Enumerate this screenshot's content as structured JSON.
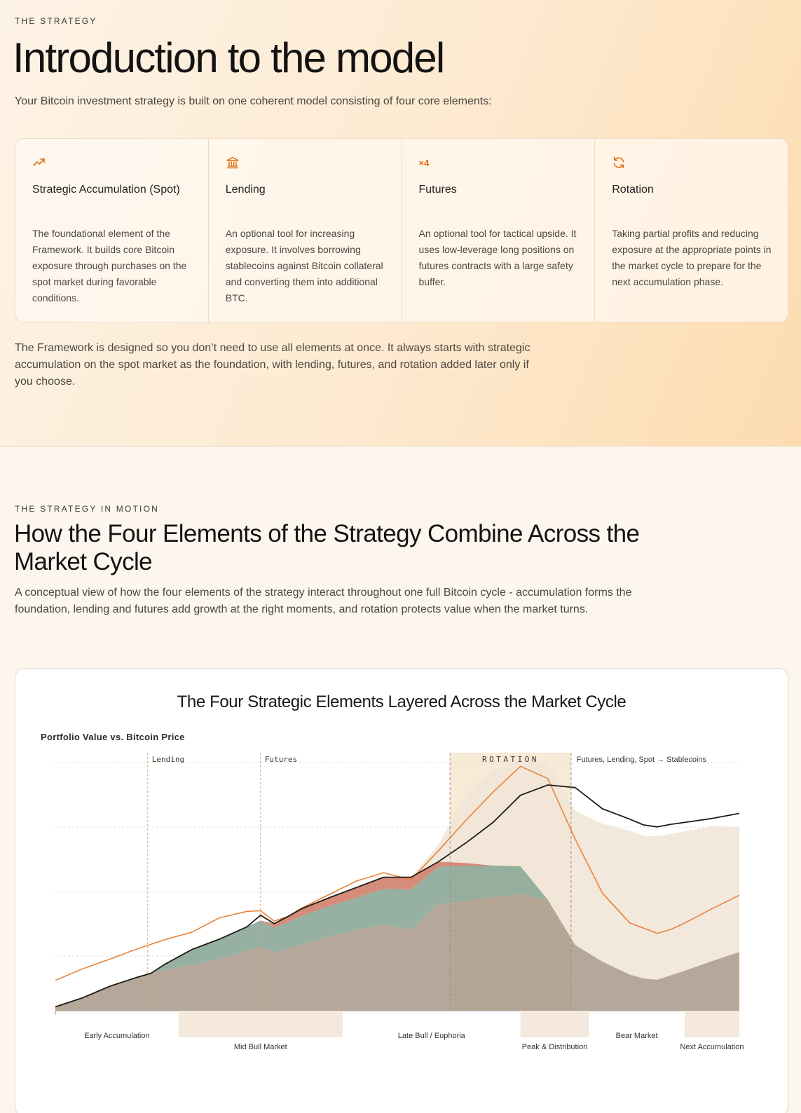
{
  "intro": {
    "eyebrow": "THE STRATEGY",
    "title": "Introduction to the model",
    "lead": "Your Bitcoin investment strategy is built on one coherent model consisting of four core elements:",
    "cards": [
      {
        "icon": "trending-up-icon",
        "title": "Strategic Accumulation (Spot)",
        "text": "The foundational element of the Framework. It builds core Bitcoin exposure through purchases on the spot market during favorable conditions."
      },
      {
        "icon": "bank-icon",
        "title": "Lending",
        "text": "An optional tool for increasing exposure. It involves borrowing stablecoins against Bitcoin collateral and converting them into additional BTC."
      },
      {
        "icon": "leverage-x4-icon",
        "icon_text": "×4",
        "title": "Futures",
        "text": "An optional tool for tactical upside. It uses low-leverage long positions on futures contracts with a large safety buffer."
      },
      {
        "icon": "refresh-icon",
        "title": "Rotation",
        "text": "Taking partial profits and reducing exposure at the appropriate points in the market cycle to prepare for the next accumulation phase."
      }
    ],
    "note": "The Framework is designed so you don’t need to use all elements at once. It always starts with strategic accumulation on the spot market as the foundation, with lending, futures, and rotation added later only if you choose."
  },
  "motion": {
    "eyebrow": "THE STRATEGY IN MOTION",
    "title": "How the Four Elements of the Strategy Combine Across the Market Cycle",
    "lead": "A conceptual view of how the four elements of the strategy interact throughout one full Bitcoin cycle - accumulation forms the foundation, lending and futures add growth at the right moments, and rotation protects value when the market turns."
  },
  "colors": {
    "accent": "#e06e14",
    "spot": "#ab9b8b",
    "lending": "#88a595",
    "futures": "#cf7d66",
    "stablecoins": "#f1e6d8",
    "rotation_band": "#f6e6cf",
    "portfolio_line": "#1f1b18",
    "btc_line": "#e8843a"
  },
  "chart_data": {
    "type": "area",
    "title": "The Four Strategic Elements Layered Across the Market Cycle",
    "subtitle": "Portfolio Value vs. Bitcoin Price",
    "x": [
      0,
      4,
      8,
      12,
      14,
      16,
      20,
      24,
      28,
      30,
      32,
      34,
      36,
      40,
      44,
      48,
      52,
      56,
      60,
      64,
      68,
      72,
      76,
      80,
      84,
      86,
      88,
      90,
      92,
      96,
      100
    ],
    "series": [
      {
        "key": "spot",
        "values": [
          0.6,
          2.0,
          3.8,
          5.2,
          5.8,
          6.3,
          7.1,
          8.0,
          9.3,
          10.0,
          9.0,
          9.6,
          10.3,
          11.5,
          12.5,
          13.4,
          12.6,
          16.5,
          17.1,
          17.6,
          18.1,
          17.2,
          10.2,
          7.6,
          5.6,
          5.0,
          4.8,
          5.5,
          6.2,
          7.7,
          9.1
        ]
      },
      {
        "key": "lending",
        "values": [
          0,
          0,
          0,
          0,
          0,
          0.9,
          2.4,
          3.1,
          3.7,
          4.0,
          3.9,
          4.1,
          4.4,
          4.7,
          5.0,
          5.5,
          6.2,
          5.8,
          5.4,
          4.9,
          4.3,
          0,
          0,
          0,
          0,
          0,
          0,
          0,
          0,
          0,
          0
        ]
      },
      {
        "key": "futures",
        "values": [
          0,
          0,
          0,
          0,
          0,
          0,
          0,
          0,
          0,
          0,
          0.6,
          0.9,
          1.1,
          1.3,
          1.6,
          1.8,
          1.9,
          0.8,
          0.4,
          0,
          0,
          0,
          0,
          0,
          0,
          0,
          0,
          0,
          0,
          0,
          0
        ]
      },
      {
        "key": "stablecoins",
        "values": [
          0,
          0,
          0,
          0,
          0,
          0,
          0,
          0,
          0,
          0,
          0,
          0,
          0,
          0,
          0,
          0,
          0,
          2.6,
          10.5,
          14.9,
          16.5,
          21.3,
          20.8,
          21.4,
          22.3,
          22.1,
          22.3,
          21.9,
          21.6,
          20.9,
          19.4
        ]
      }
    ],
    "portfolio": [
      0.6,
      2.0,
      3.8,
      5.2,
      5.8,
      7.2,
      9.5,
      11.1,
      13.0,
      14.8,
      13.5,
      14.6,
      15.8,
      17.5,
      19.1,
      20.7,
      20.7,
      23.1,
      26.0,
      29.2,
      33.4,
      35.0,
      34.6,
      31.3,
      29.7,
      28.8,
      28.5,
      28.9,
      29.2,
      29.8,
      30.6
    ],
    "bitcoin": [
      4.7,
      6.5,
      8.0,
      9.6,
      10.3,
      11.0,
      12.2,
      14.4,
      15.4,
      15.5,
      13.9,
      14.6,
      15.9,
      18.0,
      20.1,
      21.4,
      20.3,
      24.8,
      29.5,
      33.9,
      37.9,
      36.0,
      26.6,
      18.2,
      13.6,
      12.8,
      12.0,
      12.6,
      13.6,
      15.8,
      17.9
    ],
    "annotations": [
      {
        "label": "Lending",
        "x": 13.5
      },
      {
        "label": "Futures",
        "x": 30.0
      },
      {
        "label": "ROTATION",
        "x_start": 57.7,
        "x_end": 75.4
      },
      {
        "label": "Futures, Lending, Spot → Stablecoins",
        "x": 76.0
      }
    ],
    "phases": [
      {
        "label": "Early Accumulation",
        "x_start": 0,
        "x_end": 18,
        "row": 1
      },
      {
        "label": "Mid Bull Market",
        "x_start": 18,
        "x_end": 42,
        "row": 2
      },
      {
        "label": "Late Bull / Euphoria",
        "x_start": 42,
        "x_end": 68,
        "row": 1
      },
      {
        "label": "Peak & Distribution",
        "x_start": 68,
        "x_end": 78,
        "row": 2
      },
      {
        "label": "Bear Market",
        "x_start": 78,
        "x_end": 92,
        "row": 1
      },
      {
        "label": "Next Accumulation",
        "x_start": 92,
        "x_end": 100,
        "row": 2
      }
    ],
    "ylim": [
      0,
      40
    ],
    "grid": true
  }
}
